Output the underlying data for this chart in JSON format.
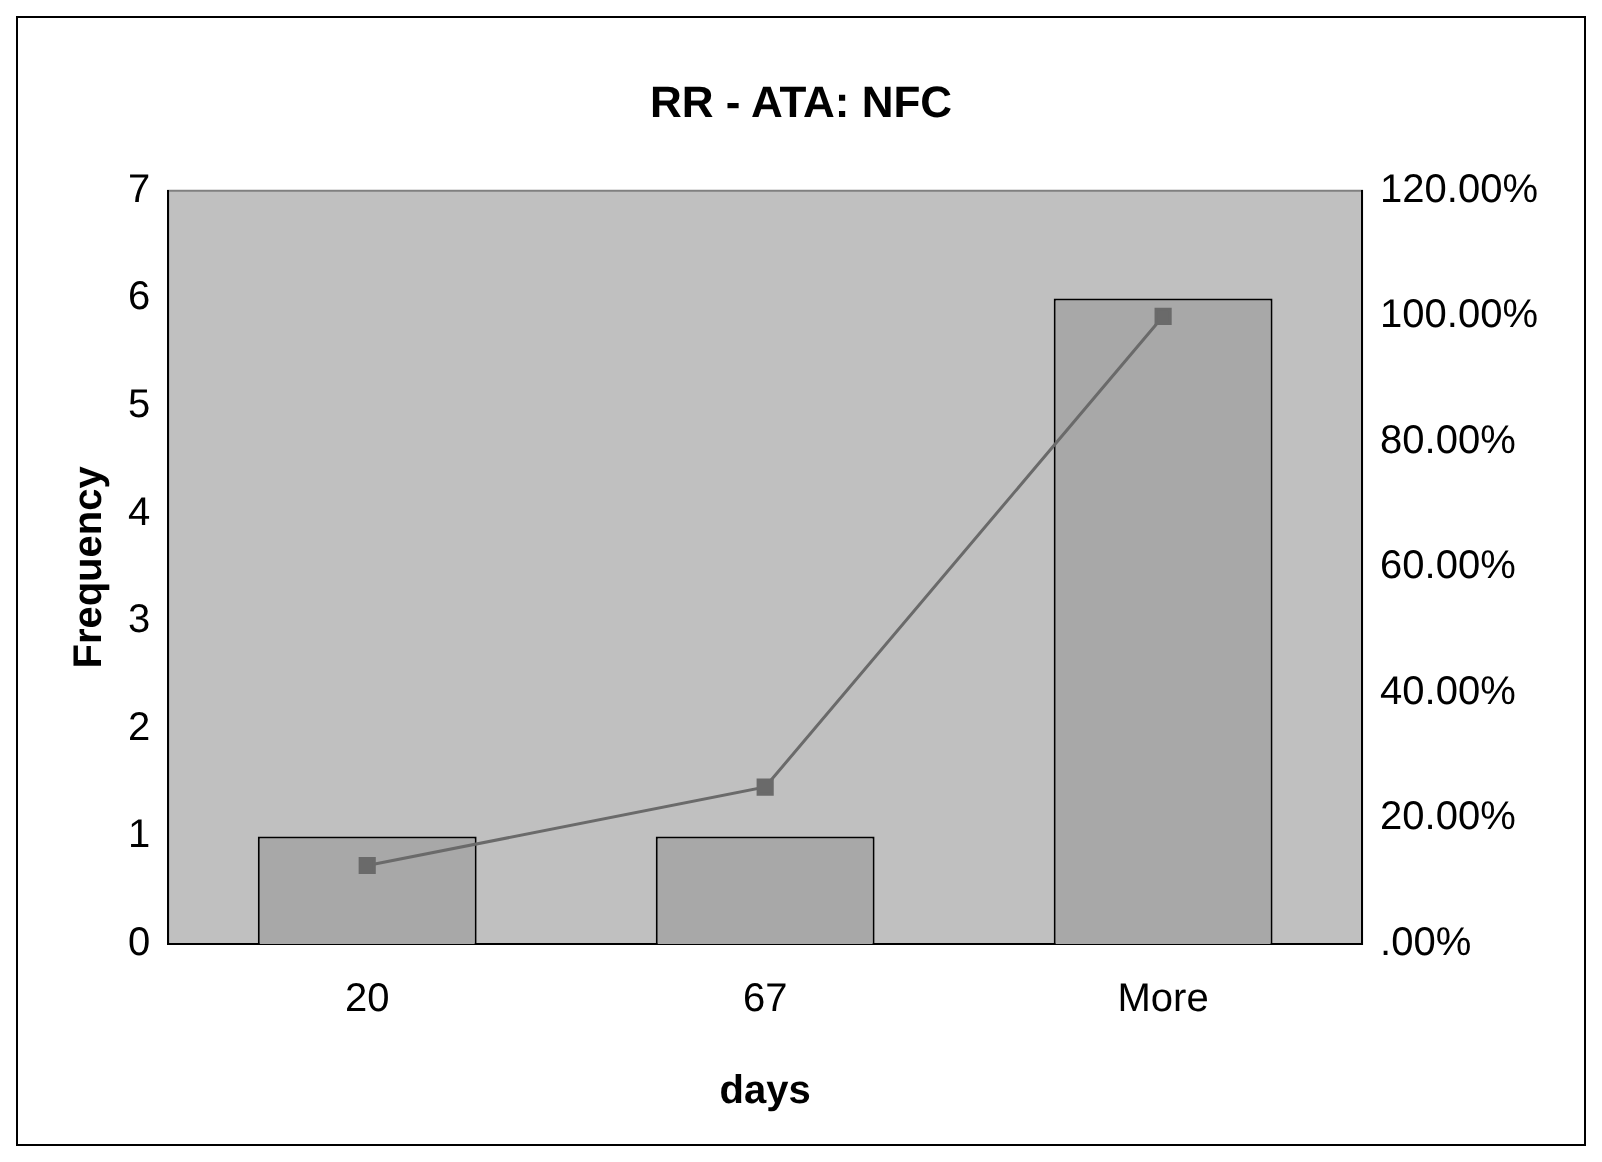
{
  "chart_data": {
    "type": "bar",
    "title": "RR - ATA: NFC",
    "xlabel": "days",
    "ylabel": "Frequency",
    "categories": [
      "20",
      "67",
      "More"
    ],
    "series": [
      {
        "color": "#a8a8a8",
        "values": [
          1,
          1,
          6
        ]
      },
      {
        "type": "line",
        "axis": "y2",
        "color": "#6a6a6a",
        "values": [
          12.5,
          25,
          100
        ],
        "marker": "square"
      }
    ],
    "ylim": [
      0,
      7
    ],
    "yticks": [
      0,
      1,
      2,
      3,
      4,
      5,
      6,
      7
    ],
    "y2lim": [
      0,
      120
    ],
    "y2ticks": [
      {
        "value": 0,
        "label": ".00%"
      },
      {
        "value": 20,
        "label": "20.00%"
      },
      {
        "value": 40,
        "label": "40.00%"
      },
      {
        "value": 60,
        "label": "60.00%"
      },
      {
        "value": 80,
        "label": "80.00%"
      },
      {
        "value": 100,
        "label": "100.00%"
      },
      {
        "value": 120,
        "label": "120.00%"
      }
    ],
    "grid": false,
    "legend": false
  }
}
